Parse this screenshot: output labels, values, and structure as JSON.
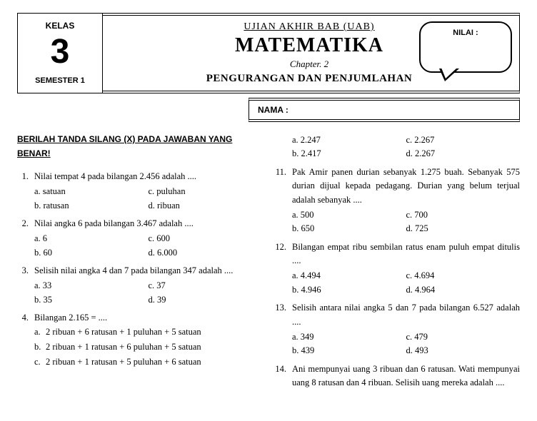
{
  "header": {
    "kelas_label": "KELAS",
    "kelas_num": "3",
    "semester": "SEMESTER 1",
    "uab": "UJIAN AKHIR BAB (UAB)",
    "subject": "MATEMATIKA",
    "chapter": "Chapter. 2",
    "topic": "PENGURANGAN DAN PENJUMLAHAN",
    "nilai_label": "NILAI :",
    "nama_label": "NAMA :"
  },
  "instruction": "BERILAH TANDA SILANG (X) PADA JAWABAN YANG BENAR!",
  "left": [
    {
      "n": "1.",
      "t": "Nilai tempat 4 pada bilangan 2.456 adalah ....",
      "opts": [
        [
          "a. satuan",
          "c. puluhan"
        ],
        [
          "b. ratusan",
          "d. ribuan"
        ]
      ]
    },
    {
      "n": "2.",
      "t": "Nilai angka 6 pada bilangan 3.467 adalah ....",
      "opts": [
        [
          "a. 6",
          "c. 600"
        ],
        [
          "b. 60",
          "d. 6.000"
        ]
      ]
    },
    {
      "n": "3.",
      "t": "Selisih nilai angka 4 dan 7 pada bilangan 347 adalah ....",
      "opts": [
        [
          "a. 33",
          "c. 37"
        ],
        [
          "b. 35",
          "d. 39"
        ]
      ]
    },
    {
      "n": "4.",
      "t": "Bilangan 2.165 = ....",
      "wide": [
        [
          "a.",
          "2 ribuan + 6 ratusan + 1 puluhan + 5 satuan"
        ],
        [
          "b.",
          "2 ribuan + 1 ratusan + 6 puluhan + 5 satuan"
        ],
        [
          "c.",
          "2 ribuan + 1 ratusan + 5 puluhan + 6 satuan"
        ]
      ]
    }
  ],
  "right_pre": {
    "opts": [
      [
        "a. 2.247",
        "c. 2.267"
      ],
      [
        "b. 2.417",
        "d. 2.267"
      ]
    ]
  },
  "right": [
    {
      "n": "11.",
      "t": "Pak Amir panen durian sebanyak 1.275 buah. Sebanyak 575 durian dijual kepada pedagang. Durian yang belum terjual adalah sebanyak ....",
      "opts": [
        [
          "a. 500",
          "c. 700"
        ],
        [
          "b. 650",
          "d. 725"
        ]
      ]
    },
    {
      "n": "12.",
      "t": "Bilangan empat ribu sembilan ratus enam puluh empat ditulis ....",
      "opts": [
        [
          "a. 4.494",
          "c. 4.694"
        ],
        [
          "b. 4.946",
          "d. 4.964"
        ]
      ]
    },
    {
      "n": "13.",
      "t": "Selisih antara nilai angka 5 dan 7 pada bilangan 6.527 adalah ....",
      "opts": [
        [
          "a. 349",
          "c. 479"
        ],
        [
          "b. 439",
          "d. 493"
        ]
      ]
    },
    {
      "n": "14.",
      "t": "Ani mempunyai uang 3 ribuan dan 6 ratusan. Wati mempunyai uang 8 ratusan dan 4 ribuan. Selisih uang mereka adalah ...."
    }
  ]
}
